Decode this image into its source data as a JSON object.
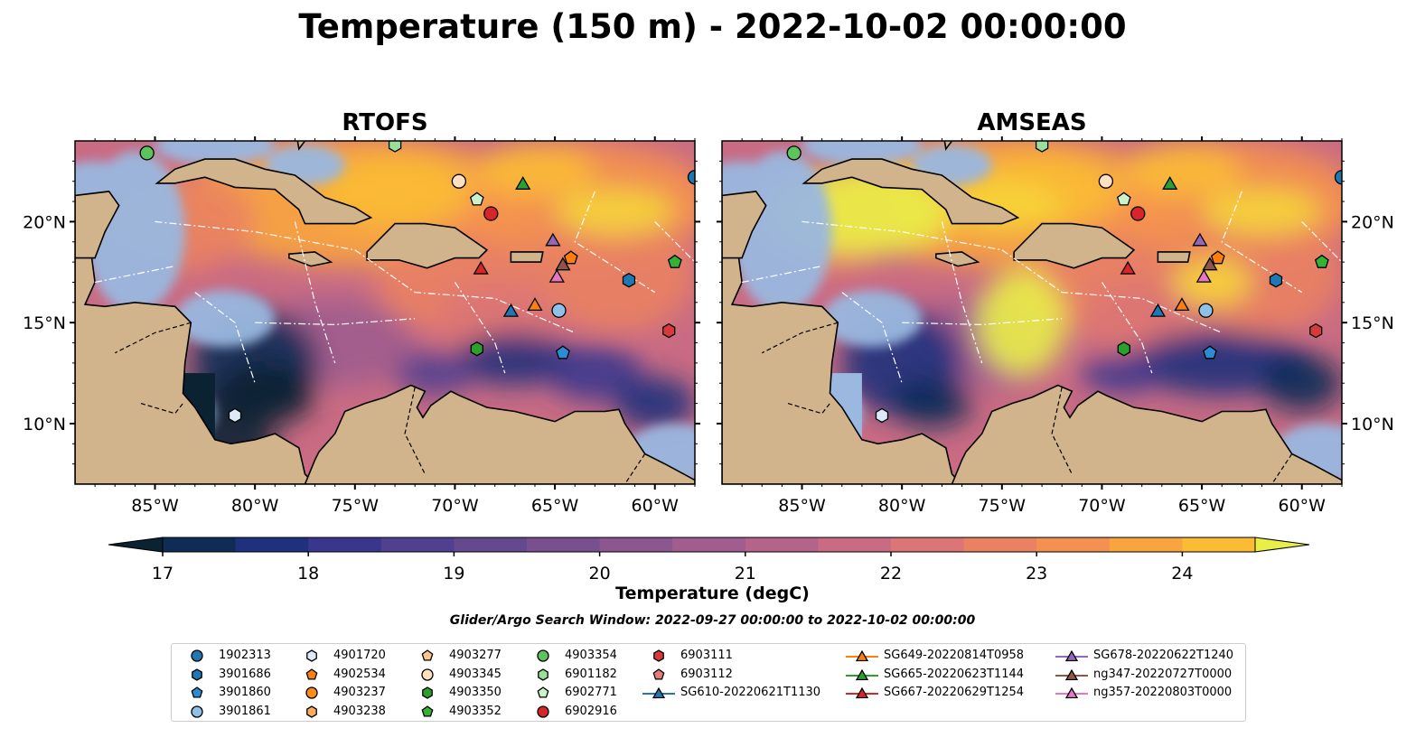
{
  "title": "Temperature (150 m) - 2022-10-02 00:00:00",
  "panels": [
    {
      "title": "RTOFS",
      "model": "rtofs"
    },
    {
      "title": "AMSEAS",
      "model": "amseas"
    }
  ],
  "map": {
    "lon_range": [
      -89,
      -58
    ],
    "lat_range": [
      7,
      24
    ],
    "lon_ticks": [
      "85°W",
      "80°W",
      "75°W",
      "70°W",
      "65°W",
      "60°W"
    ],
    "lat_ticks": [
      "20°N",
      "15°N",
      "10°N"
    ],
    "land_color": "#d2b48c",
    "shallow_color": "#9ab8e0"
  },
  "colorbar": {
    "label": "Temperature (degC)",
    "ticks": [
      "17",
      "18",
      "19",
      "20",
      "21",
      "22",
      "23",
      "24"
    ],
    "range": [
      17,
      24.5
    ],
    "colormap": "thermal",
    "extend": "both",
    "colors": [
      "#0b2233",
      "#0f2c57",
      "#1f317c",
      "#3b368d",
      "#51408f",
      "#65498f",
      "#785090",
      "#8c5690",
      "#a05d8e",
      "#b4638a",
      "#c96b83",
      "#dc7575",
      "#ea8262",
      "#f59150",
      "#f9a53f",
      "#fbbb35",
      "#f6d43a",
      "#eaef48"
    ]
  },
  "search_window": "Glider/Argo Search Window: 2022-09-27 00:00:00 to 2022-10-02 00:00:00",
  "legend": [
    {
      "label": "1902313",
      "marker": "circle",
      "color": "#1f77b4"
    },
    {
      "label": "3901686",
      "marker": "hexagon",
      "color": "#1f77b4"
    },
    {
      "label": "3901860",
      "marker": "pentagon",
      "color": "#2b8cd4"
    },
    {
      "label": "3901861",
      "marker": "circle",
      "color": "#8ec1ea"
    },
    {
      "label": "4901720",
      "marker": "hexagon",
      "color": "#dbe9f8"
    },
    {
      "label": "4902534",
      "marker": "pentagon",
      "color": "#ff7f0e"
    },
    {
      "label": "4903237",
      "marker": "circle",
      "color": "#ff8c1a"
    },
    {
      "label": "4903238",
      "marker": "hexagon",
      "color": "#ffad5c"
    },
    {
      "label": "4903277",
      "marker": "pentagon",
      "color": "#ffc68c"
    },
    {
      "label": "4903345",
      "marker": "circle",
      "color": "#ffe1c2"
    },
    {
      "label": "4903350",
      "marker": "hexagon",
      "color": "#2ca02c"
    },
    {
      "label": "4903352",
      "marker": "pentagon",
      "color": "#33b233"
    },
    {
      "label": "4903354",
      "marker": "circle",
      "color": "#5cc45c"
    },
    {
      "label": "6901182",
      "marker": "hexagon",
      "color": "#98e098"
    },
    {
      "label": "6902771",
      "marker": "pentagon",
      "color": "#ccf2cc"
    },
    {
      "label": "6902916",
      "marker": "circle",
      "color": "#d62728"
    },
    {
      "label": "6903111",
      "marker": "hexagon",
      "color": "#d63a3a"
    },
    {
      "label": "6903112",
      "marker": "pentagon",
      "color": "#e87a7a"
    },
    {
      "label": "SG610-20220621T1130",
      "marker": "triangle",
      "color": "#1f77b4"
    },
    {
      "label": "SG649-20220814T0958",
      "marker": "triangle",
      "color": "#ff7f0e"
    },
    {
      "label": "SG665-20220623T1144",
      "marker": "triangle",
      "color": "#2ca02c"
    },
    {
      "label": "SG667-20220629T1254",
      "marker": "triangle",
      "color": "#d62728"
    },
    {
      "label": "SG678-20220622T1240",
      "marker": "triangle",
      "color": "#9467bd"
    },
    {
      "label": "ng347-20220727T0000",
      "marker": "triangle",
      "color": "#8c564b"
    },
    {
      "label": "ng357-20220803T0000",
      "marker": "triangle",
      "color": "#e377c2"
    }
  ],
  "observations": [
    {
      "id": "1902313",
      "lon": -58.0,
      "lat": 22.2
    },
    {
      "id": "3901686",
      "lon": -61.3,
      "lat": 17.1
    },
    {
      "id": "3901860",
      "lon": -64.6,
      "lat": 13.5
    },
    {
      "id": "3901861",
      "lon": -64.8,
      "lat": 15.6
    },
    {
      "id": "4901720",
      "lon": -81.0,
      "lat": 10.4
    },
    {
      "id": "4902534",
      "lon": -64.2,
      "lat": 18.2
    },
    {
      "id": "4903345",
      "lon": -69.8,
      "lat": 22.0
    },
    {
      "id": "4903350",
      "lon": -68.9,
      "lat": 13.7
    },
    {
      "id": "4903352",
      "lon": -59.0,
      "lat": 18.0
    },
    {
      "id": "4903354",
      "lon": -85.4,
      "lat": 23.4
    },
    {
      "id": "6901182",
      "lon": -73.0,
      "lat": 23.8
    },
    {
      "id": "6902771",
      "lon": -68.9,
      "lat": 21.1
    },
    {
      "id": "6902916",
      "lon": -68.2,
      "lat": 20.4
    },
    {
      "id": "6903111",
      "lon": -59.3,
      "lat": 14.6
    },
    {
      "id": "SG610-20220621T1130",
      "lon": -67.2,
      "lat": 15.6
    },
    {
      "id": "SG649-20220814T0958",
      "lon": -66.0,
      "lat": 15.9
    },
    {
      "id": "SG665-20220623T1144",
      "lon": -66.6,
      "lat": 21.9
    },
    {
      "id": "SG667-20220629T1254",
      "lon": -68.7,
      "lat": 17.7
    },
    {
      "id": "SG678-20220622T1240",
      "lon": -65.1,
      "lat": 19.1
    },
    {
      "id": "ng347-20220727T0000",
      "lon": -64.6,
      "lat": 17.9
    },
    {
      "id": "ng357-20220803T0000",
      "lon": -64.9,
      "lat": 17.3
    }
  ]
}
